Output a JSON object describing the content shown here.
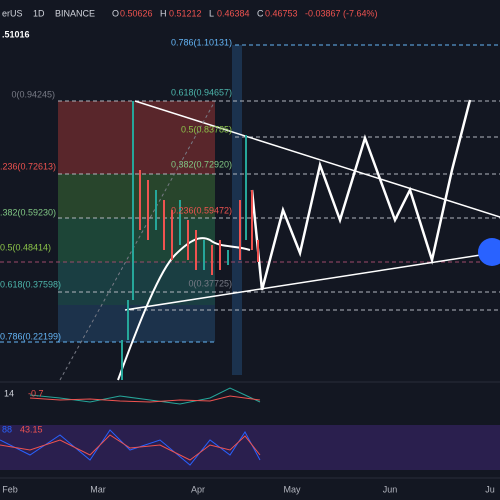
{
  "header": {
    "symbol": "erUS",
    "interval": "1D",
    "exchange": "BINANCE",
    "o_label": "O",
    "open": "0.50626",
    "h_label": "H",
    "high": "0.51212",
    "l_label": "L",
    "low": "0.46384",
    "c_label": "C",
    "close": "0.46753",
    "change": "-0.03867 (-7.64%)"
  },
  "price_label": ".51016",
  "fib_labels": [
    {
      "text": "0.786(1.10131)",
      "color": "#64b5f6"
    },
    {
      "text": "0(0.94245)",
      "color": "#787b86"
    },
    {
      "text": "0.618(0.94657)",
      "color": "#4db6ac"
    },
    {
      "text": "0.5(0.83785)",
      "color": "#8bc34a"
    },
    {
      "text": ".236(0.72613)",
      "color": "#ef5350"
    },
    {
      "text": "0.382(0.72920)",
      "color": "#81c784"
    },
    {
      "text": ".382(0.59230)",
      "color": "#81c784"
    },
    {
      "text": "0.236(0.59472)",
      "color": "#ef5350"
    },
    {
      "text": "0.5(0.48414)",
      "color": "#8bc34a"
    },
    {
      "text": "0.618(0.37598)",
      "color": "#4db6ac"
    },
    {
      "text": "0(0.37725)",
      "color": "#787b86"
    },
    {
      "text": "0.786(0.22199)",
      "color": "#64b5f6"
    }
  ],
  "indicators": {
    "first_length": "14",
    "first_value": "-0.7",
    "second_a": "88",
    "second_b": "43.15"
  },
  "x_axis": [
    "Feb",
    "Mar",
    "Apr",
    "May",
    "Jun",
    "Ju"
  ]
}
